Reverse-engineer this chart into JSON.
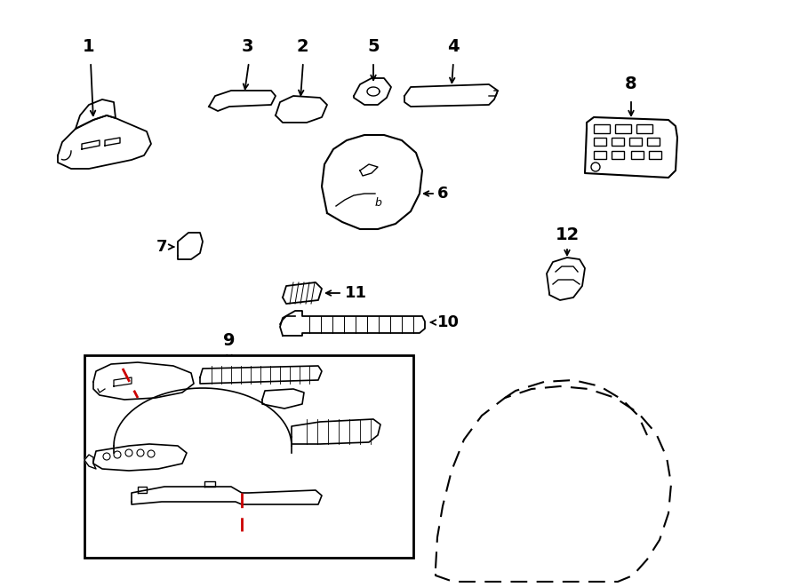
{
  "bg_color": "#ffffff",
  "line_color": "#000000",
  "red_color": "#cc0000",
  "fig_width": 9.0,
  "fig_height": 6.61,
  "dpi": 100
}
